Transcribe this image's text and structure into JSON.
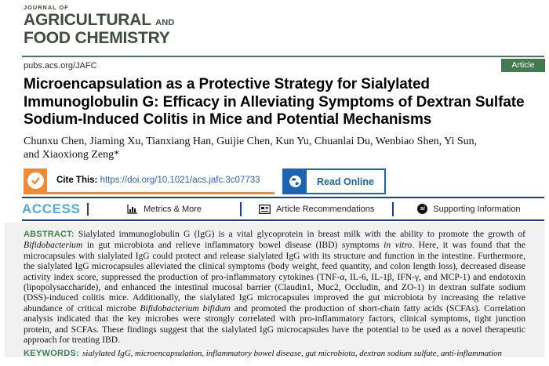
{
  "journal": {
    "kicker": "JOURNAL OF",
    "name_main": "AGRICULTURAL",
    "name_and": "AND",
    "name_line2": "FOOD CHEMISTRY"
  },
  "topbar": {
    "url": "pubs.acs.org/JAFC",
    "badge": "Article"
  },
  "article": {
    "title": "Microencapsulation as a Protective Strategy for Sialylated Immunoglobulin G: Efficacy in Alleviating Symptoms of Dextran Sulfate Sodium-Induced Colitis in Mice and Potential Mechanisms",
    "authors_line1": "Chunxu Chen, Jiaming Xu, Tianxiang Han, Guijie Chen, Kun Yu, Chuanlai Du, Wenbiao Shen, Yi Sun,",
    "authors_line2": "and Xiaoxiong Zeng*"
  },
  "cite": {
    "label": "Cite This:",
    "doi": "https://doi.org/10.1021/acs.jafc.3c07733",
    "read_online": "Read Online"
  },
  "access_bar": {
    "access": "ACCESS",
    "items": [
      {
        "label": "Metrics & More",
        "icon": "bar-chart-icon"
      },
      {
        "label": "Article Recommendations",
        "icon": "article-icon"
      },
      {
        "label": "Supporting Information",
        "icon": "si-icon",
        "icon_text": "si"
      }
    ]
  },
  "abstract": {
    "heading": "ABSTRACT:",
    "segments": [
      {
        "text": "Sialylated immunoglobulin G (IgG) is a vital glycoprotein in breast milk with the ability to promote the growth of ",
        "italic": false
      },
      {
        "text": "Bifidobacterium",
        "italic": true
      },
      {
        "text": " in gut microbiota and relieve inflammatory bowel disease (IBD) symptoms ",
        "italic": false
      },
      {
        "text": "in vitro",
        "italic": true
      },
      {
        "text": ". Here, it was found that the microcapsules with sialylated IgG could protect and release sialylated IgG with its structure and function in the intestine. Furthermore, the sialylated IgG microcapsules alleviated the clinical symptoms (body weight, feed quantity, and colon length loss), decreased disease activity index score, suppressed the production of pro-inflammatory cytokines (TNF-α, IL-6, IL-1β, IFN-γ, and MCP-1) and endotoxin (lipopolysaccharide), and enhanced the intestinal mucosal barrier (Claudin1, Muc2, Occludin, and ZO-1) in dextran sulfate sodium (DSS)-induced colitis mice. Additionally, the sialylated IgG microcapsules improved the gut microbiota by increasing the relative abundance of critical microbe ",
        "italic": false
      },
      {
        "text": "Bifidobacterium bifidum",
        "italic": true
      },
      {
        "text": " and promoted the production of short-chain fatty acids (SCFAs). Correlation analysis indicated that the key microbes were strongly correlated with pro-inflammatory factors, clinical symptoms, tight junction protein, and SCFAs. These findings suggest that the sialylated IgG microcapsules have the potential to be used as a novel therapeutic approach for treating IBD.",
        "italic": false
      }
    ]
  },
  "keywords": {
    "heading": "KEYWORDS:",
    "text": "sialylated IgG, microencapsulation, inflammatory bowel disease, gut microbiota, dextran sodium sulfate, anti-inflammation"
  },
  "colors": {
    "journal_green_dark": "#3e4e3c",
    "acs_green": "#447a50",
    "heading_green": "#3f7f52",
    "navy": "#1d3f96",
    "access_blue": "#55a7e0",
    "link_blue": "#2a65c5",
    "button_blue": "#1c64b0",
    "orange": "#f08a33",
    "abstract_bg": "#f1f1f2"
  }
}
